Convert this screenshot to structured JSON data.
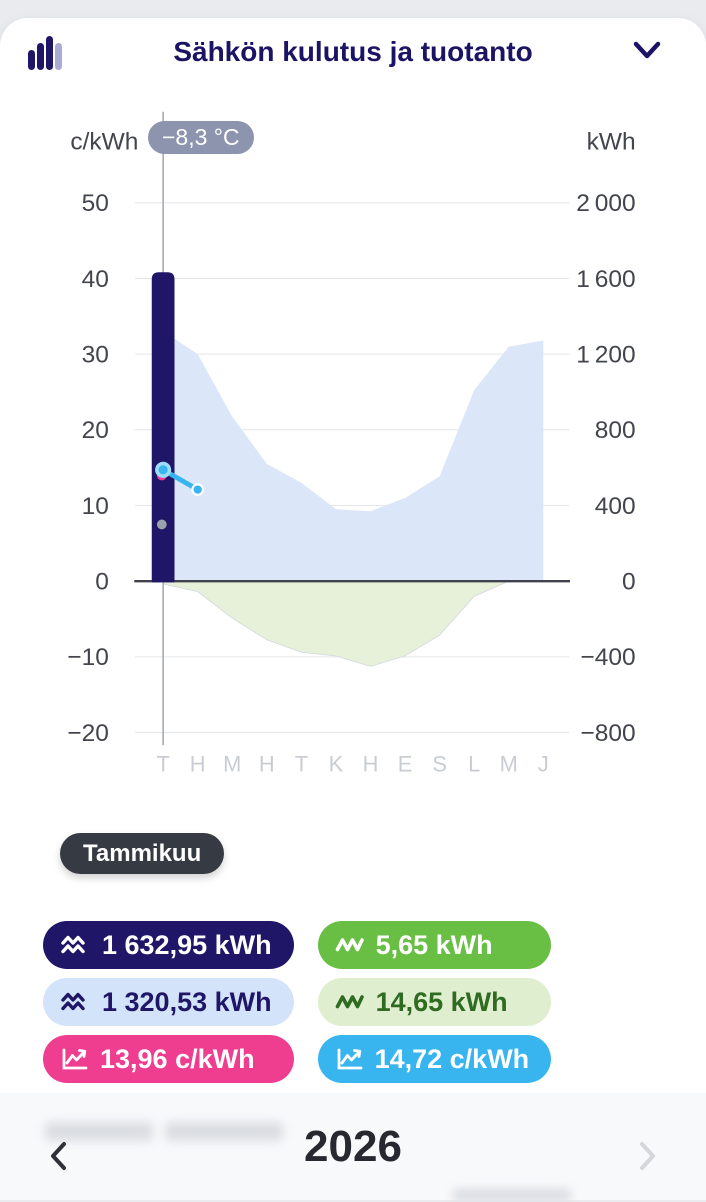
{
  "header": {
    "title": "Sähkön kulutus ja tuotanto",
    "icons": {
      "left": "bar-chart-icon",
      "right": "chevron-down-icon"
    }
  },
  "chart": {
    "temperature_badge": "−8,3 °C",
    "tooltip_month": "Tammikuu"
  },
  "chart_data": {
    "type": "composite",
    "categories_short": [
      "T",
      "H",
      "M",
      "H",
      "T",
      "K",
      "H",
      "E",
      "S",
      "L",
      "M",
      "J"
    ],
    "selected_month": "Tammikuu",
    "selected_index": 0,
    "axis_left": {
      "label": "c/kWh",
      "ticks": [
        50,
        40,
        30,
        20,
        10,
        0,
        -10,
        -20
      ],
      "tick_labels": [
        "50",
        "40",
        "30",
        "20",
        "10",
        "0",
        "−10",
        "−20"
      ]
    },
    "axis_right": {
      "label": "kWh",
      "ticks": [
        2000,
        1600,
        1200,
        800,
        400,
        0,
        -400,
        -800
      ],
      "tick_labels": [
        "2 000",
        "1 600",
        "1 200",
        "800",
        "400",
        "0",
        "−400",
        "−800"
      ]
    },
    "series": [
      {
        "name": "consumption-selected-bar",
        "type": "bar",
        "axis": "right",
        "unit": "kWh",
        "color": "#201668",
        "points": [
          {
            "i": 0,
            "value": 1632.95
          }
        ]
      },
      {
        "name": "consumption-estimate-area",
        "type": "area",
        "axis": "right",
        "unit": "kWh",
        "color": "#dbe7f9",
        "stroke": "none",
        "values": [
          1320.53,
          1200,
          870,
          620,
          520,
          380,
          370,
          440,
          555,
          1010,
          1240,
          1272
        ]
      },
      {
        "name": "production-area",
        "type": "area",
        "axis": "right",
        "unit": "kWh",
        "color": "#e7f1da",
        "stroke": "#d5dbe0",
        "values": [
          -15,
          -55,
          -195,
          -310,
          -375,
          -395,
          -450,
          -395,
          -285,
          -80,
          0,
          0
        ]
      },
      {
        "name": "price-estimate-line",
        "type": "line",
        "axis": "left",
        "unit": "c/kWh",
        "color": "#38b5ee",
        "points": [
          {
            "i": 0,
            "value": 14.72
          },
          {
            "i": 1,
            "value": 12.1
          }
        ]
      },
      {
        "name": "price-actual-point",
        "type": "point",
        "axis": "left",
        "unit": "c/kWh",
        "color": "#ef3d90",
        "points": [
          {
            "i": 0,
            "value": 13.96
          }
        ]
      },
      {
        "name": "temperature-point",
        "type": "point",
        "axis": "left",
        "color": "#9aa1aa",
        "represents": "−8,3 °C",
        "points": [
          {
            "i": 0,
            "value": 7.5
          }
        ]
      }
    ]
  },
  "legend": {
    "badges": [
      {
        "id": "consumption-total",
        "value": "1 632,95 kWh",
        "icon": "double-zigzag-icon",
        "bg": "#201668",
        "fg": "#ffffff"
      },
      {
        "id": "production-total",
        "value": "5,65 kWh",
        "icon": "sawtooth-icon",
        "bg": "#68bf43",
        "fg": "#ffffff"
      },
      {
        "id": "consumption-estimate",
        "value": "1 320,53 kWh",
        "icon": "double-zigzag-icon",
        "bg": "#d3e3fa",
        "fg": "#201668"
      },
      {
        "id": "production-estimate",
        "value": "14,65 kWh",
        "icon": "sawtooth-icon",
        "bg": "#dfeecf",
        "fg": "#2f6b21"
      },
      {
        "id": "price-actual",
        "value": "13,96 c/kWh",
        "icon": "line-chart-icon",
        "bg": "#ef3d90",
        "fg": "#ffffff"
      },
      {
        "id": "price-estimate",
        "value": "14,72 c/kWh",
        "icon": "line-chart-icon",
        "bg": "#38b5ee",
        "fg": "#ffffff"
      }
    ]
  },
  "footer": {
    "year": "2026",
    "icons": {
      "prev": "chevron-left-icon",
      "next": "chevron-right-icon"
    }
  }
}
